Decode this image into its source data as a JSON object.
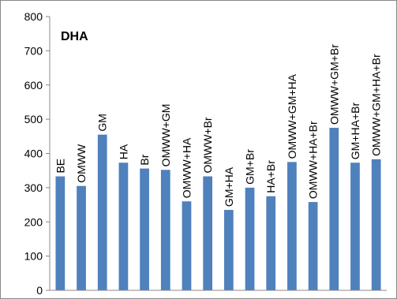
{
  "chart_data": {
    "type": "bar",
    "title": "DHA",
    "xlabel": "",
    "ylabel": "",
    "ylim": [
      0,
      800
    ],
    "yticks": [
      0,
      100,
      200,
      300,
      400,
      500,
      600,
      700,
      800
    ],
    "grid": false,
    "legend": "none",
    "bar_color": "#4F81BD",
    "categories": [
      "BE",
      "OMWW",
      "GM",
      "HA",
      "Br",
      "OMWW+GM",
      "OMWW+HA",
      "OMWW+Br",
      "GM+HA",
      "GM+Br",
      "HA+Br",
      "OMWW+GM+HA",
      "OMWW+HA+Br",
      "OMWW+GM+Br",
      "GM+HA+Br",
      "OMWW+GM+HA+Br"
    ],
    "values": [
      333,
      305,
      455,
      373,
      356,
      352,
      260,
      333,
      235,
      300,
      275,
      375,
      258,
      475,
      373,
      383
    ]
  }
}
